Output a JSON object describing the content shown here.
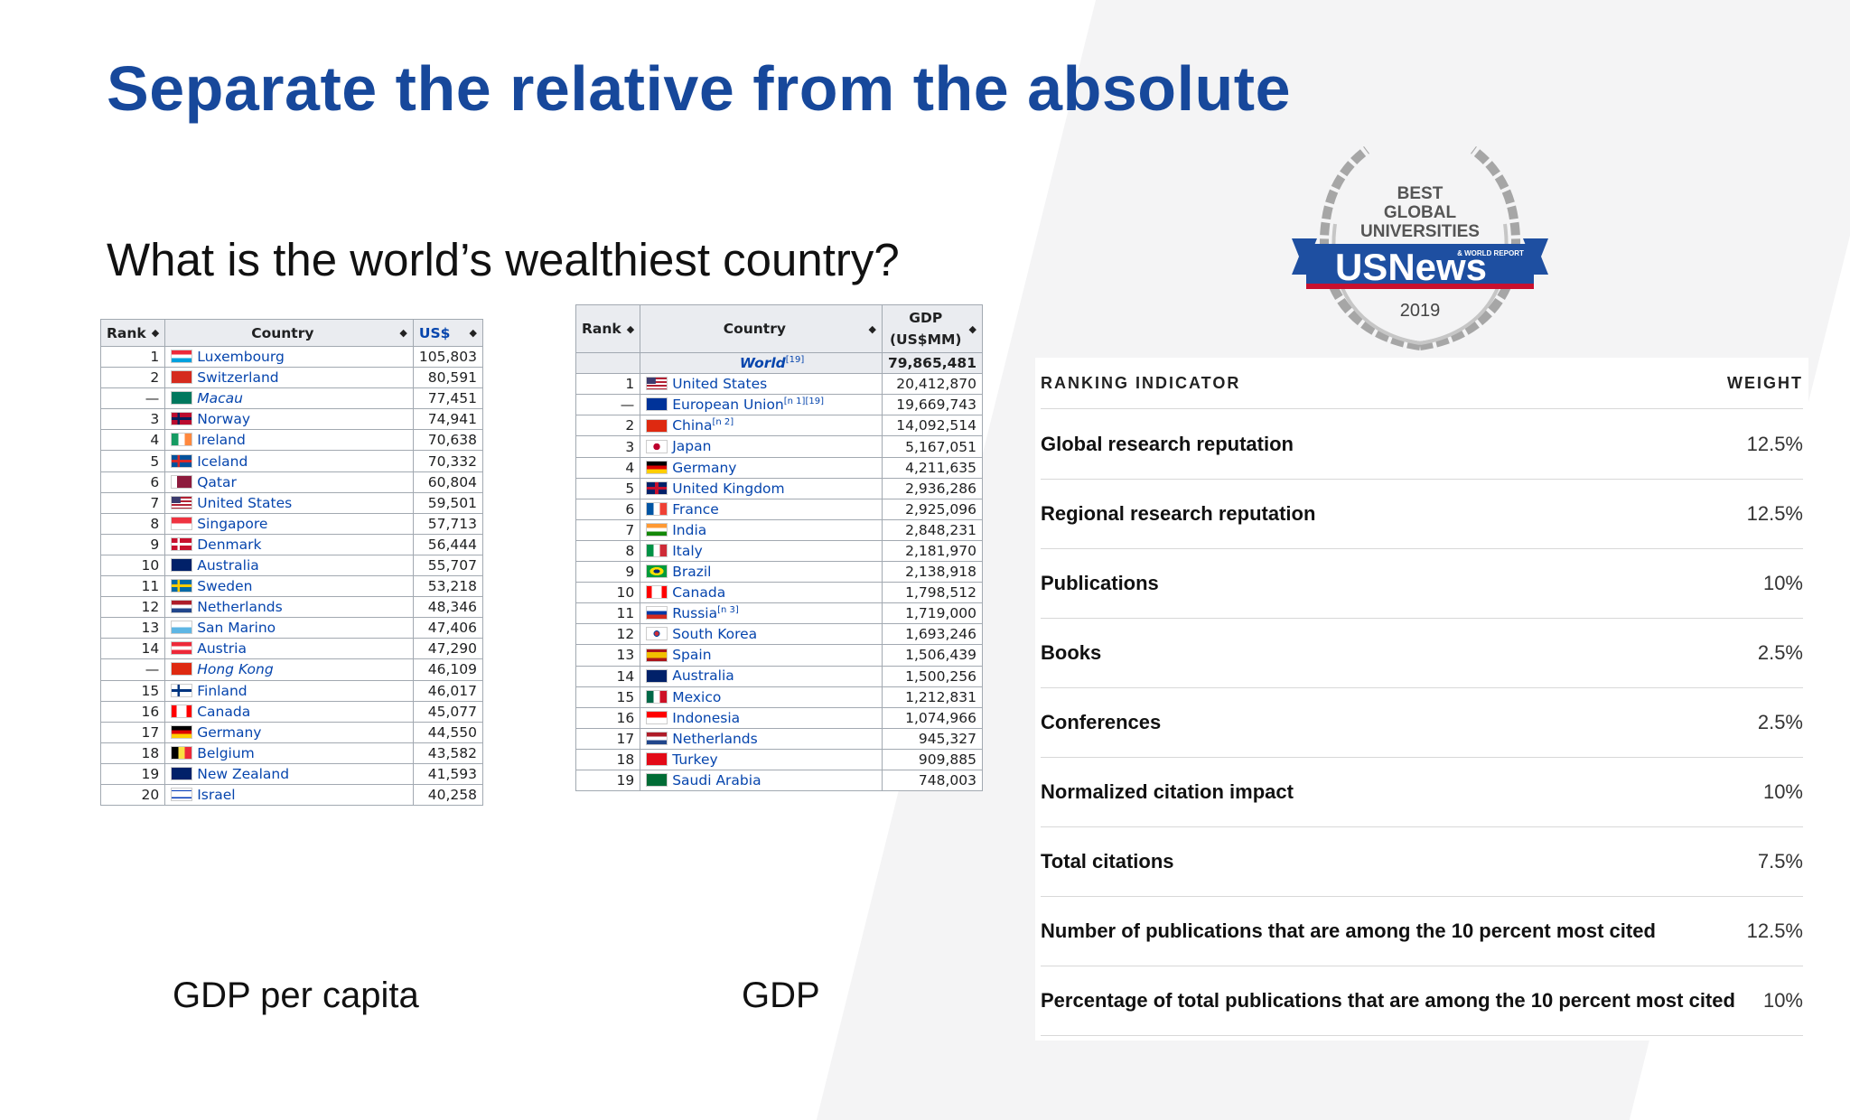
{
  "title": "Separate the relative from the absolute",
  "question": "What is the world’s wealthiest country?",
  "captions": {
    "left": "GDP per capita",
    "middle": "GDP"
  },
  "table1": {
    "headers": [
      "Rank",
      "Country",
      "US$"
    ],
    "rows": [
      {
        "rank": "1",
        "country": "Luxembourg",
        "value": "105,803",
        "flag": "luxembourg-flag"
      },
      {
        "rank": "2",
        "country": "Switzerland",
        "value": "80,591",
        "flag": "switzerland-flag"
      },
      {
        "rank": "—",
        "country": "Macau",
        "value": "77,451",
        "flag": "macau-flag",
        "italic": true
      },
      {
        "rank": "3",
        "country": "Norway",
        "value": "74,941",
        "flag": "norway-flag"
      },
      {
        "rank": "4",
        "country": "Ireland",
        "value": "70,638",
        "flag": "ireland-flag"
      },
      {
        "rank": "5",
        "country": "Iceland",
        "value": "70,332",
        "flag": "iceland-flag"
      },
      {
        "rank": "6",
        "country": "Qatar",
        "value": "60,804",
        "flag": "qatar-flag"
      },
      {
        "rank": "7",
        "country": "United States",
        "value": "59,501",
        "flag": "usa-flag"
      },
      {
        "rank": "8",
        "country": "Singapore",
        "value": "57,713",
        "flag": "singapore-flag"
      },
      {
        "rank": "9",
        "country": "Denmark",
        "value": "56,444",
        "flag": "denmark-flag"
      },
      {
        "rank": "10",
        "country": "Australia",
        "value": "55,707",
        "flag": "australia-flag"
      },
      {
        "rank": "11",
        "country": "Sweden",
        "value": "53,218",
        "flag": "sweden-flag"
      },
      {
        "rank": "12",
        "country": "Netherlands",
        "value": "48,346",
        "flag": "netherlands-flag"
      },
      {
        "rank": "13",
        "country": "San Marino",
        "value": "47,406",
        "flag": "san-marino-flag"
      },
      {
        "rank": "14",
        "country": "Austria",
        "value": "47,290",
        "flag": "austria-flag"
      },
      {
        "rank": "—",
        "country": "Hong Kong",
        "value": "46,109",
        "flag": "hong-kong-flag",
        "italic": true
      },
      {
        "rank": "15",
        "country": "Finland",
        "value": "46,017",
        "flag": "finland-flag"
      },
      {
        "rank": "16",
        "country": "Canada",
        "value": "45,077",
        "flag": "canada-flag"
      },
      {
        "rank": "17",
        "country": "Germany",
        "value": "44,550",
        "flag": "germany-flag"
      },
      {
        "rank": "18",
        "country": "Belgium",
        "value": "43,582",
        "flag": "belgium-flag"
      },
      {
        "rank": "19",
        "country": "New Zealand",
        "value": "41,593",
        "flag": "new-zealand-flag"
      },
      {
        "rank": "20",
        "country": "Israel",
        "value": "40,258",
        "flag": "israel-flag"
      }
    ]
  },
  "table2": {
    "headers": [
      "Rank",
      "Country",
      "GDP",
      "(US$MM)"
    ],
    "world": {
      "country": "World",
      "sup": "[19]",
      "value": "79,865,481"
    },
    "rows": [
      {
        "rank": "1",
        "country": "United States",
        "sup": "",
        "value": "20,412,870",
        "flag": "usa-flag"
      },
      {
        "rank": "—",
        "country": "European Union",
        "sup": "[n 1][19]",
        "value": "19,669,743",
        "flag": "eu-flag"
      },
      {
        "rank": "2",
        "country": "China",
        "sup": "[n 2]",
        "value": "14,092,514",
        "flag": "china-flag"
      },
      {
        "rank": "3",
        "country": "Japan",
        "sup": "",
        "value": "5,167,051",
        "flag": "japan-flag"
      },
      {
        "rank": "4",
        "country": "Germany",
        "sup": "",
        "value": "4,211,635",
        "flag": "germany-flag"
      },
      {
        "rank": "5",
        "country": "United Kingdom",
        "sup": "",
        "value": "2,936,286",
        "flag": "uk-flag"
      },
      {
        "rank": "6",
        "country": "France",
        "sup": "",
        "value": "2,925,096",
        "flag": "france-flag"
      },
      {
        "rank": "7",
        "country": "India",
        "sup": "",
        "value": "2,848,231",
        "flag": "india-flag"
      },
      {
        "rank": "8",
        "country": "Italy",
        "sup": "",
        "value": "2,181,970",
        "flag": "italy-flag"
      },
      {
        "rank": "9",
        "country": "Brazil",
        "sup": "",
        "value": "2,138,918",
        "flag": "brazil-flag"
      },
      {
        "rank": "10",
        "country": "Canada",
        "sup": "",
        "value": "1,798,512",
        "flag": "canada-flag"
      },
      {
        "rank": "11",
        "country": "Russia",
        "sup": "[n 3]",
        "value": "1,719,000",
        "flag": "russia-flag"
      },
      {
        "rank": "12",
        "country": "South Korea",
        "sup": "",
        "value": "1,693,246",
        "flag": "south-korea-flag"
      },
      {
        "rank": "13",
        "country": "Spain",
        "sup": "",
        "value": "1,506,439",
        "flag": "spain-flag"
      },
      {
        "rank": "14",
        "country": "Australia",
        "sup": "",
        "value": "1,500,256",
        "flag": "australia-flag"
      },
      {
        "rank": "15",
        "country": "Mexico",
        "sup": "",
        "value": "1,212,831",
        "flag": "mexico-flag"
      },
      {
        "rank": "16",
        "country": "Indonesia",
        "sup": "",
        "value": "1,074,966",
        "flag": "indonesia-flag"
      },
      {
        "rank": "17",
        "country": "Netherlands",
        "sup": "",
        "value": "945,327",
        "flag": "netherlands-flag"
      },
      {
        "rank": "18",
        "country": "Turkey",
        "sup": "",
        "value": "909,885",
        "flag": "turkey-flag"
      },
      {
        "rank": "19",
        "country": "Saudi Arabia",
        "sup": "",
        "value": "748,003",
        "flag": "saudi-arabia-flag"
      }
    ]
  },
  "badge": {
    "line1": "BEST",
    "line2": "GLOBAL",
    "line3": "UNIVERSITIES",
    "brand": "USNews",
    "brand_small": "& WORLD REPORT",
    "year": "2019",
    "colors": {
      "blue": "#1e4fa1",
      "red": "#c8102e",
      "gray": "#9a9a9a"
    }
  },
  "ranking": {
    "header_left": "RANKING INDICATOR",
    "header_right": "WEIGHT",
    "rows": [
      {
        "name": "Global research reputation",
        "weight": "12.5%"
      },
      {
        "name": "Regional research reputation",
        "weight": "12.5%"
      },
      {
        "name": "Publications",
        "weight": "10%"
      },
      {
        "name": "Books",
        "weight": "2.5%"
      },
      {
        "name": "Conferences",
        "weight": "2.5%"
      },
      {
        "name": "Normalized citation impact",
        "weight": "10%"
      },
      {
        "name": "Total citations",
        "weight": "7.5%"
      },
      {
        "name": "Number of publications that are among the 10 percent most cited",
        "weight": "12.5%"
      },
      {
        "name": "Percentage of total publications that are among the 10 percent most cited",
        "weight": "10%"
      }
    ]
  }
}
